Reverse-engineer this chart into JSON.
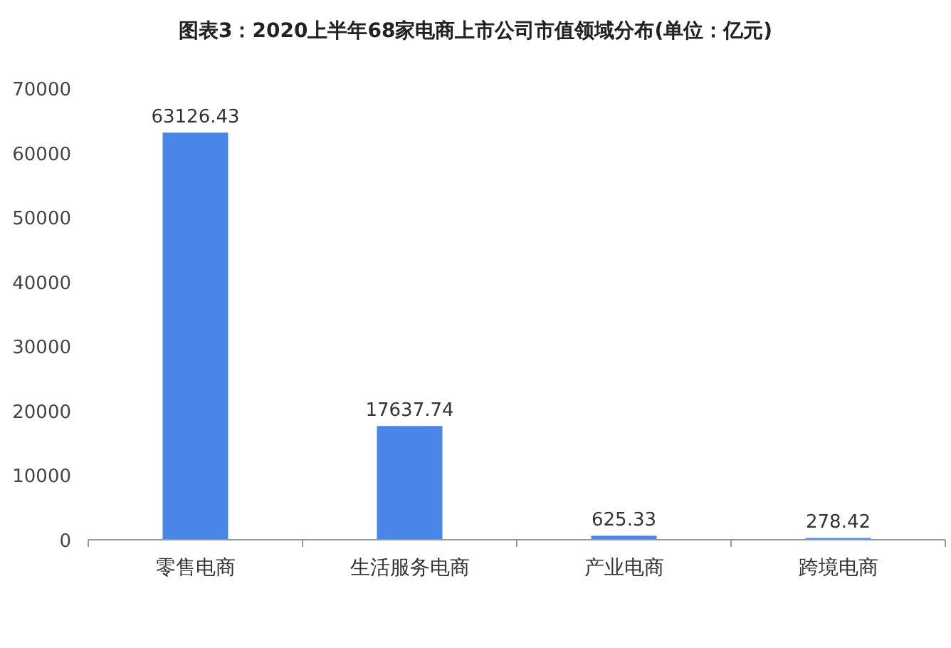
{
  "chart_data": {
    "type": "bar",
    "title": "图表3：2020上半年68家电商上市公司市值领域分布(单位：亿元)",
    "categories": [
      "零售电商",
      "生活服务电商",
      "产业电商",
      "跨境电商"
    ],
    "values": [
      63126.43,
      17637.74,
      625.33,
      278.42
    ],
    "color": "#4a86e8",
    "ylim": [
      0,
      70000
    ],
    "yticks": [
      0,
      10000,
      20000,
      30000,
      40000,
      50000,
      60000,
      70000
    ],
    "data_labels": true,
    "grid": false
  }
}
